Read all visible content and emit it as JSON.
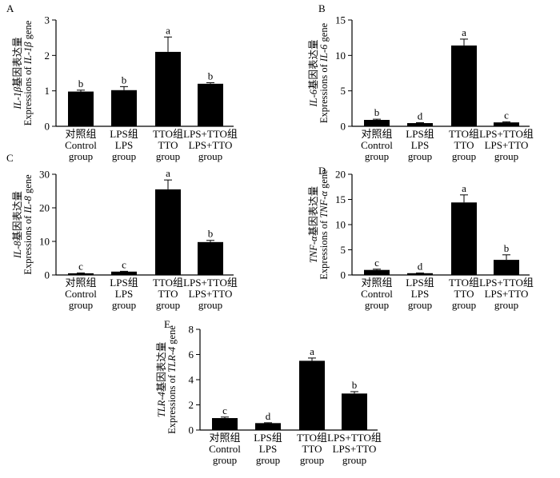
{
  "chart_data": [
    {
      "panel": "A",
      "type": "bar",
      "categories": [
        [
          "对照组",
          "Control",
          "group"
        ],
        [
          "LPS组",
          "LPS",
          "group"
        ],
        [
          "TTO组",
          "TTO",
          "group"
        ],
        [
          "LPS+TTO组",
          "LPS+TTO",
          "group"
        ]
      ],
      "values": [
        0.98,
        1.02,
        2.1,
        1.2
      ],
      "errors": [
        0.04,
        0.1,
        0.42,
        0.03
      ],
      "sig_letters": [
        "b",
        "b",
        "a",
        "b"
      ],
      "ylabel_cn": "IL-1β基因表达量",
      "ylabel_en": "Expressions of IL-1β gene",
      "ylim": [
        0,
        3
      ],
      "yticks": [
        0,
        1,
        2,
        3
      ]
    },
    {
      "panel": "B",
      "type": "bar",
      "categories": [
        [
          "对照组",
          "Control",
          "group"
        ],
        [
          "LPS组",
          "LPS",
          "group"
        ],
        [
          "TTO组",
          "TTO",
          "group"
        ],
        [
          "LPS+TTO组",
          "LPS+TTO",
          "group"
        ]
      ],
      "values": [
        0.9,
        0.45,
        11.4,
        0.55
      ],
      "errors": [
        0.1,
        0.06,
        0.9,
        0.08
      ],
      "sig_letters": [
        "b",
        "d",
        "a",
        "c"
      ],
      "ylabel_cn": "IL-6基因表达量",
      "ylabel_en": "Expressions of IL-6 gene",
      "ylim": [
        0,
        15
      ],
      "yticks": [
        0,
        5,
        10,
        15
      ]
    },
    {
      "panel": "C",
      "type": "bar",
      "categories": [
        [
          "对照组",
          "Control",
          "group"
        ],
        [
          "LPS组",
          "LPS",
          "group"
        ],
        [
          "TTO组",
          "TTO",
          "group"
        ],
        [
          "LPS+TTO组",
          "LPS+TTO",
          "group"
        ]
      ],
      "values": [
        0.5,
        1.0,
        25.5,
        9.8
      ],
      "errors": [
        0.1,
        0.1,
        2.8,
        0.5
      ],
      "sig_letters": [
        "c",
        "c",
        "a",
        "b"
      ],
      "ylabel_cn": "IL-8基因表达量",
      "ylabel_en": "Expressions of IL-8 gene",
      "ylim": [
        0,
        30
      ],
      "yticks": [
        0,
        10,
        20,
        30
      ]
    },
    {
      "panel": "D",
      "type": "bar",
      "categories": [
        [
          "对照组",
          "Control",
          "group"
        ],
        [
          "LPS组",
          "LPS",
          "group"
        ],
        [
          "TTO组",
          "TTO",
          "group"
        ],
        [
          "LPS+TTO组",
          "LPS+TTO",
          "group"
        ]
      ],
      "values": [
        1.0,
        0.35,
        14.4,
        3.0
      ],
      "errors": [
        0.15,
        0.05,
        1.5,
        1.0
      ],
      "sig_letters": [
        "c",
        "d",
        "a",
        "b"
      ],
      "ylabel_cn": "TNF-α基因表达量",
      "ylabel_en": "Expressions of TNF-α gene",
      "ylim": [
        0,
        20
      ],
      "yticks": [
        0,
        5,
        10,
        15,
        20
      ]
    },
    {
      "panel": "E",
      "type": "bar",
      "categories": [
        [
          "对照组",
          "Control",
          "group"
        ],
        [
          "LPS组",
          "LPS",
          "group"
        ],
        [
          "TTO组",
          "TTO",
          "group"
        ],
        [
          "LPS+TTO组",
          "LPS+TTO",
          "group"
        ]
      ],
      "values": [
        0.95,
        0.55,
        5.5,
        2.9
      ],
      "errors": [
        0.08,
        0.03,
        0.22,
        0.15
      ],
      "sig_letters": [
        "c",
        "d",
        "a",
        "b"
      ],
      "ylabel_cn": "TLR-4基因表达量",
      "ylabel_en": "Expressions of TLR-4 gene",
      "ylim": [
        0,
        8
      ],
      "yticks": [
        0,
        2,
        4,
        6,
        8
      ]
    }
  ]
}
